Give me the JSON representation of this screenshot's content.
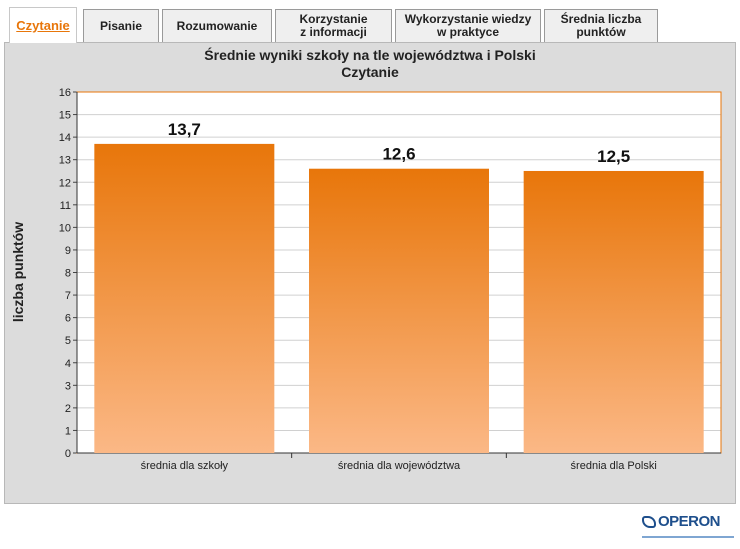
{
  "tabs": [
    {
      "label": "Czytanie",
      "active": true
    },
    {
      "label": "Pisanie",
      "active": false
    },
    {
      "label": "Rozumowanie",
      "active": false
    },
    {
      "label": "Korzystanie\nz informacji",
      "active": false
    },
    {
      "label": "Wykorzystanie wiedzy\nw praktyce",
      "active": false
    },
    {
      "label": "Średnia liczba\npunktów",
      "active": false
    }
  ],
  "chart_data": {
    "type": "bar",
    "title": "Średnie wyniki szkoły na tle województwa i Polski",
    "subtitle": "Czytanie",
    "xlabel": "",
    "ylabel": "liczba punktów",
    "categories": [
      "średnia dla szkoły",
      "średnia dla województwa",
      "średnia dla Polski"
    ],
    "values": [
      13.7,
      12.6,
      12.5
    ],
    "value_labels": [
      "13,7",
      "12,6",
      "12,5"
    ],
    "ylim": [
      0,
      16
    ],
    "yticks": [
      0,
      1,
      2,
      3,
      4,
      5,
      6,
      7,
      8,
      9,
      10,
      11,
      12,
      13,
      14,
      15,
      16
    ],
    "grid": true,
    "bar_color_top": "#e8760a",
    "bar_color_bottom": "#fbb886"
  },
  "logo": {
    "text": "OPERON",
    "color": "#1e4f8c"
  }
}
